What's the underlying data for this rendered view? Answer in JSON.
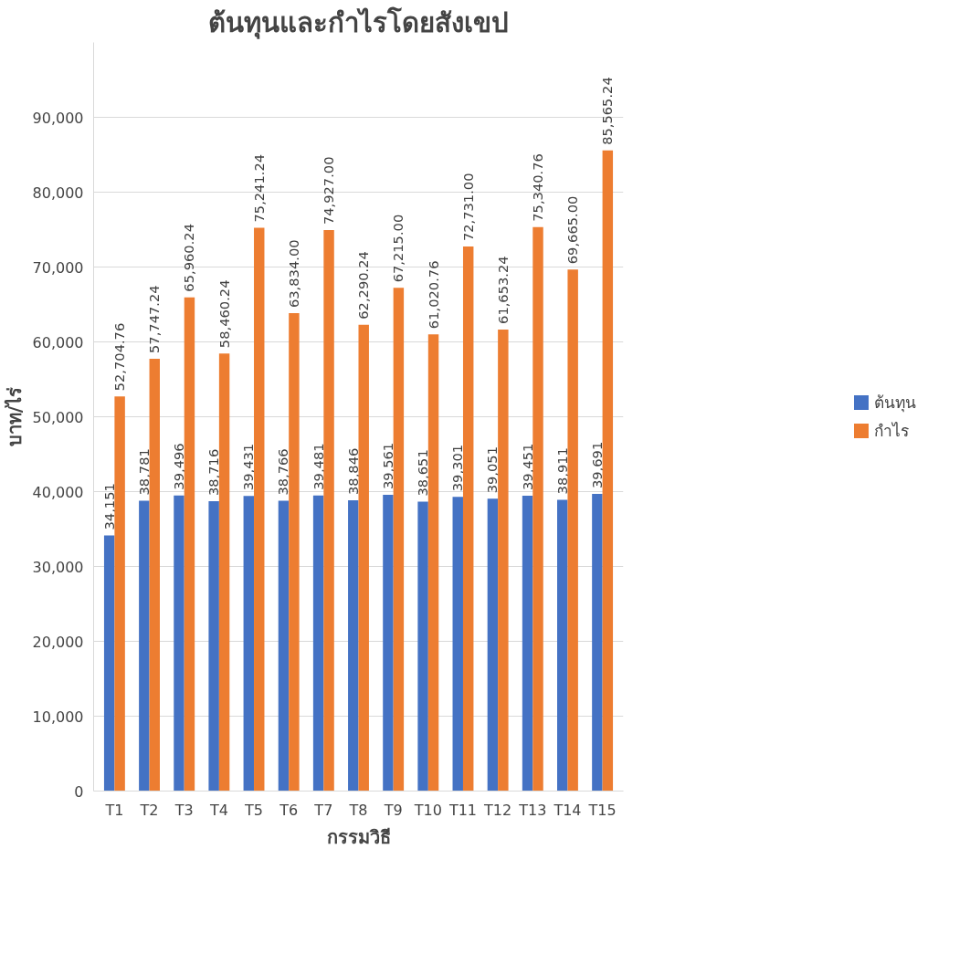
{
  "chart_data": {
    "type": "bar",
    "title": "ต้นทุนและกำไรโดยสังเขป",
    "xlabel": "กรรมวิธี",
    "ylabel": "บาท/ไร่",
    "categories": [
      "T1",
      "T2",
      "T3",
      "T4",
      "T5",
      "T6",
      "T7",
      "T8",
      "T9",
      "T10",
      "T11",
      "T12",
      "T13",
      "T14",
      "T15"
    ],
    "series": [
      {
        "name": "ต้นทุน",
        "color": "#4472c4",
        "values": [
          34151,
          38781,
          39496,
          38716,
          39431,
          38766,
          39481,
          38846,
          39561,
          38651,
          39301,
          39051,
          39451,
          38911,
          39691
        ],
        "value_labels": [
          "34,151",
          "38,781",
          "39,496",
          "38,716",
          "39,431",
          "38,766",
          "39,481",
          "38,846",
          "39,561",
          "38,651",
          "39,301",
          "39,051",
          "39,451",
          "38,911",
          "39,691"
        ]
      },
      {
        "name": "กำไร",
        "color": "#ed7d31",
        "values": [
          52704.76,
          57747.24,
          65960.24,
          58460.24,
          75241.24,
          63834.0,
          74927.0,
          62290.24,
          67215.0,
          61020.76,
          72731.0,
          61653.24,
          75340.76,
          69665.0,
          85565.24
        ],
        "value_labels": [
          "52,704.76",
          "57,747.24",
          "65,960.24",
          "58,460.24",
          "75,241.24",
          "63,834.00",
          "74,927.00",
          "62,290.24",
          "67,215.00",
          "61,020.76",
          "72,731.00",
          "61,653.24",
          "75,340.76",
          "69,665.00",
          "85,565.24"
        ]
      }
    ],
    "ylim": [
      0,
      100000
    ],
    "yticks": [
      0,
      {
        "value": 10000,
        "label": "10,000"
      },
      {
        "value": 20000,
        "label": "20,000"
      },
      {
        "value": 30000,
        "label": "30,000"
      },
      {
        "value": 40000,
        "label": "40,000"
      },
      {
        "value": 50000,
        "label": "50,000"
      },
      {
        "value": 60000,
        "label": "60,000"
      },
      {
        "value": 70000,
        "label": "70,000"
      },
      {
        "value": 80000,
        "label": "80,000"
      },
      {
        "value": 90000,
        "label": "90,000"
      }
    ],
    "grid": "y",
    "legend": "right"
  }
}
